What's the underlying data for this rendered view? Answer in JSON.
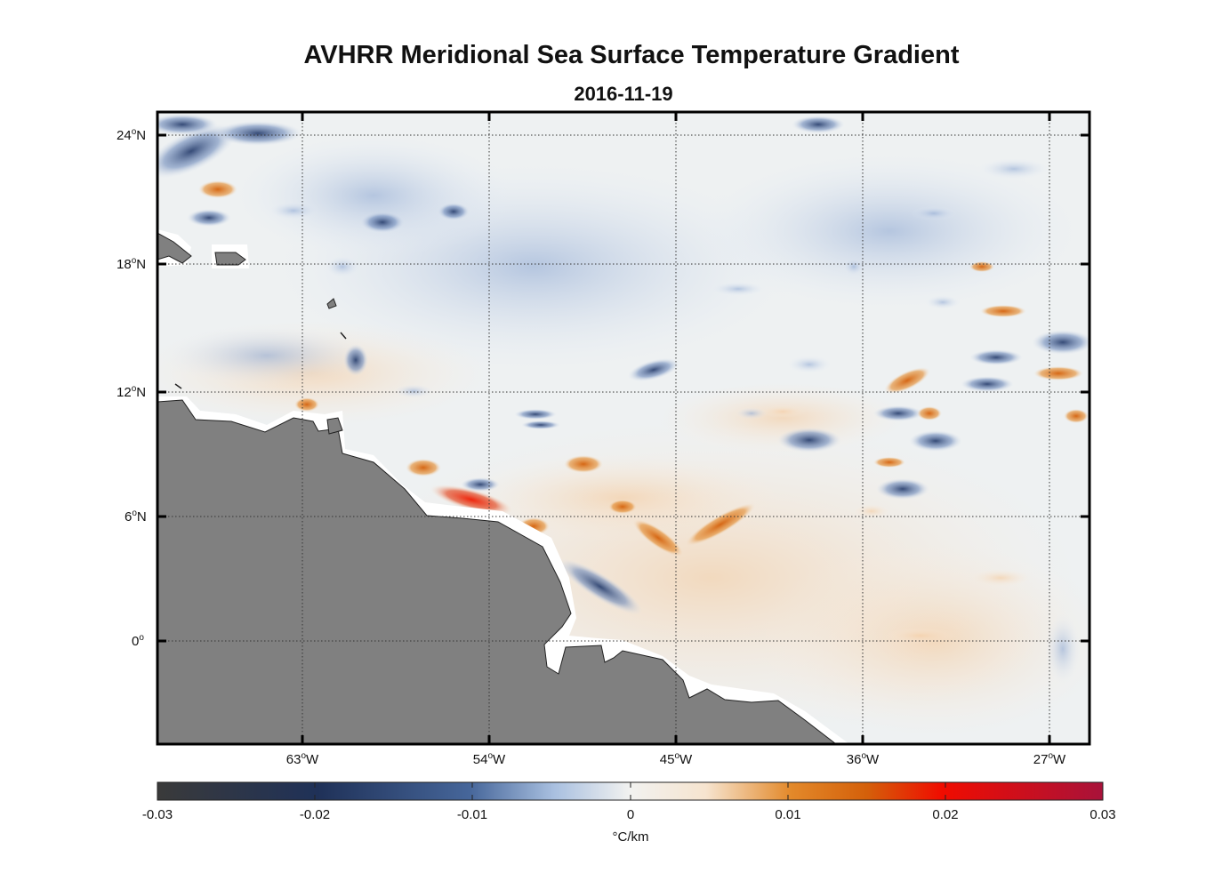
{
  "title": "AVHRR Meridional Sea Surface Temperature Gradient",
  "date": "2016-11-19",
  "lat_labels": [
    {
      "deg": "24",
      "hemi": "N"
    },
    {
      "deg": "18",
      "hemi": "N"
    },
    {
      "deg": "12",
      "hemi": "N"
    },
    {
      "deg": "6",
      "hemi": "N"
    },
    {
      "deg": "0",
      "hemi": ""
    }
  ],
  "lon_labels": [
    {
      "deg": "63",
      "hemi": "W"
    },
    {
      "deg": "54",
      "hemi": "W"
    },
    {
      "deg": "45",
      "hemi": "W"
    },
    {
      "deg": "36",
      "hemi": "W"
    },
    {
      "deg": "27",
      "hemi": "W"
    }
  ],
  "colorbar": {
    "ticks": [
      "-0.03",
      "-0.02",
      "-0.01",
      "0",
      "0.01",
      "0.02",
      "0.03"
    ],
    "unit": "°C/km",
    "colors": [
      "#3a3a3a",
      "#1f3158",
      "#46669a",
      "#a9c0e0",
      "#f2f2f0",
      "#f6e4cf",
      "#e3892a",
      "#d4600a",
      "#f00c00",
      "#a8123a"
    ]
  },
  "land_color": "#808080",
  "gradient_features": [
    {
      "sign": "positive",
      "lon": -55.7,
      "lat": 6.7
    },
    {
      "sign": "positive",
      "lon": -52.5,
      "lat": 6.5
    },
    {
      "sign": "positive",
      "lon": -49.5,
      "lat": 8.3
    },
    {
      "sign": "positive",
      "lon": -42.5,
      "lat": 5.5
    },
    {
      "sign": "positive",
      "lon": -33.5,
      "lat": 12.4
    },
    {
      "sign": "positive",
      "lon": -28.5,
      "lat": 15.8
    },
    {
      "sign": "positive",
      "lon": -66,
      "lat": 22.5
    },
    {
      "sign": "negative",
      "lon": -32,
      "lat": 10.4
    },
    {
      "sign": "negative",
      "lon": -34,
      "lat": 7.3
    },
    {
      "sign": "negative",
      "lon": -38,
      "lat": 10
    },
    {
      "sign": "negative",
      "lon": -46.5,
      "lat": 13.2
    },
    {
      "sign": "negative",
      "lon": -27.5,
      "lat": 14.2
    },
    {
      "sign": "negative",
      "lon": -68.5,
      "lat": 22.7
    },
    {
      "sign": "negative",
      "lon": -48.5,
      "lat": 2.4
    }
  ]
}
